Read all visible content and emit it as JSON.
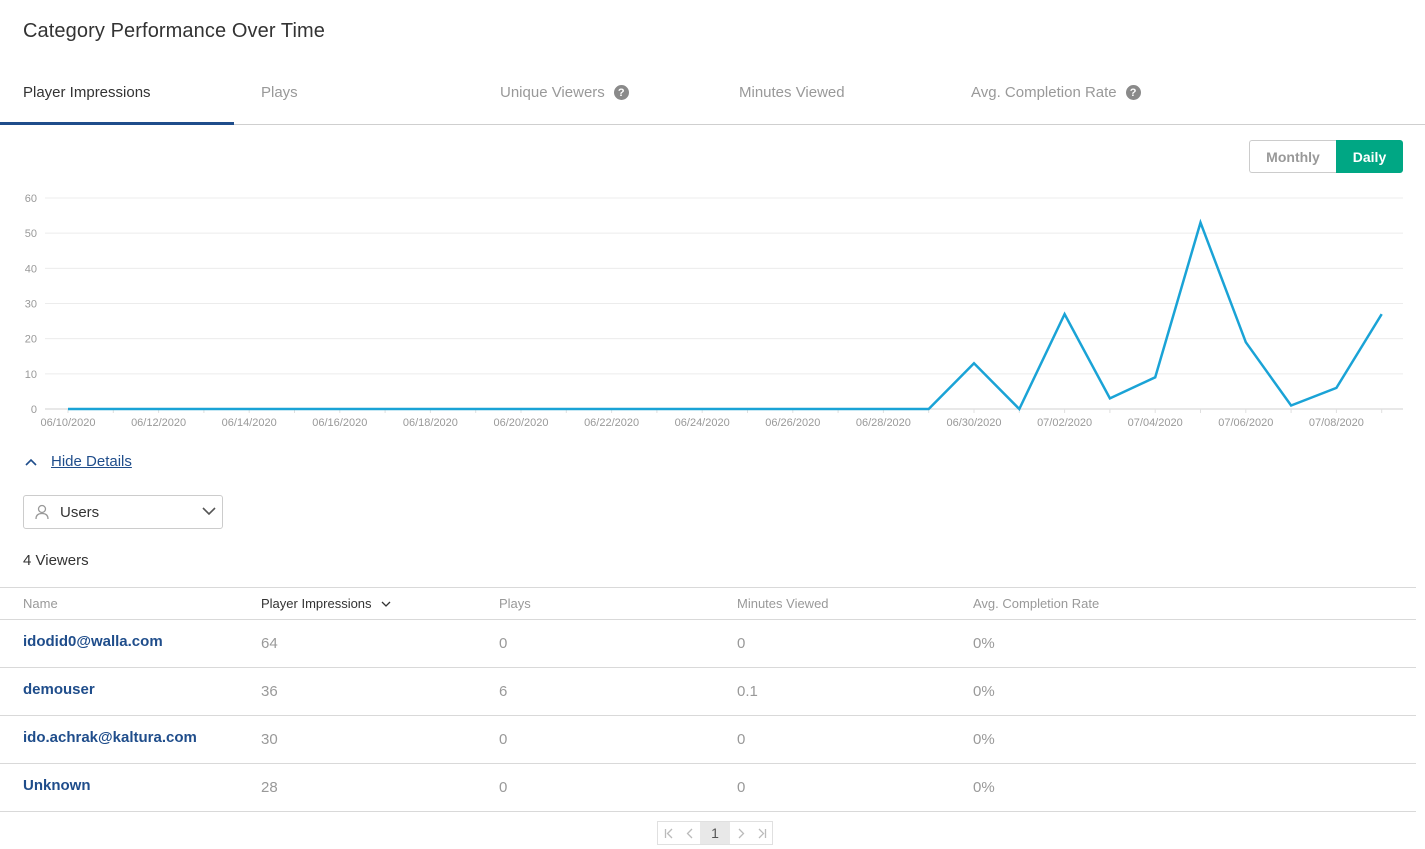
{
  "title": "Category Performance Over Time",
  "tabs": [
    {
      "label": "Player Impressions",
      "active": true,
      "help": false
    },
    {
      "label": "Plays",
      "active": false,
      "help": false
    },
    {
      "label": "Unique Viewers",
      "active": false,
      "help": true
    },
    {
      "label": "Minutes Viewed",
      "active": false,
      "help": false
    },
    {
      "label": "Avg. Completion Rate",
      "active": false,
      "help": true
    }
  ],
  "help_glyph": "?",
  "toggle": {
    "monthly": "Monthly",
    "daily": "Daily",
    "selected": "Daily"
  },
  "colors": {
    "accent_green": "#00a784",
    "link_blue": "#1f4d8b",
    "series_line": "#1aa3d6"
  },
  "chart_data": {
    "type": "line",
    "x": [
      "06/10/2020",
      "06/11/2020",
      "06/12/2020",
      "06/13/2020",
      "06/14/2020",
      "06/15/2020",
      "06/16/2020",
      "06/17/2020",
      "06/18/2020",
      "06/19/2020",
      "06/20/2020",
      "06/21/2020",
      "06/22/2020",
      "06/23/2020",
      "06/24/2020",
      "06/25/2020",
      "06/26/2020",
      "06/27/2020",
      "06/28/2020",
      "06/29/2020",
      "06/30/2020",
      "07/01/2020",
      "07/02/2020",
      "07/03/2020",
      "07/04/2020",
      "07/05/2020",
      "07/06/2020",
      "07/07/2020",
      "07/08/2020",
      "07/09/2020"
    ],
    "x_tick_labels": [
      "06/10/2020",
      "06/12/2020",
      "06/14/2020",
      "06/16/2020",
      "06/18/2020",
      "06/20/2020",
      "06/22/2020",
      "06/24/2020",
      "06/26/2020",
      "06/28/2020",
      "06/30/2020",
      "07/02/2020",
      "07/04/2020",
      "07/06/2020",
      "07/08/2020"
    ],
    "series": [
      {
        "values": [
          0,
          0,
          0,
          0,
          0,
          0,
          0,
          0,
          0,
          0,
          0,
          0,
          0,
          0,
          0,
          0,
          0,
          0,
          0,
          0,
          13,
          0,
          27,
          3,
          9,
          53,
          19,
          1,
          6,
          27
        ]
      }
    ],
    "ylim": [
      0,
      60
    ],
    "y_ticks": [
      0,
      10,
      20,
      30,
      40,
      50,
      60
    ],
    "grid": true,
    "title": "",
    "xlabel": "",
    "ylabel": ""
  },
  "details": {
    "hide_label": "Hide Details"
  },
  "users_select": {
    "label": "Users",
    "icon": "user-icon"
  },
  "viewer_count": "4 Viewers",
  "table": {
    "columns": [
      "Name",
      "Player Impressions",
      "Plays",
      "Minutes Viewed",
      "Avg. Completion Rate"
    ],
    "sorted_column": "Player Impressions",
    "rows": [
      {
        "name": "idodid0@walla.com",
        "impressions": "64",
        "plays": "0",
        "minutes": "0",
        "completion": "0%"
      },
      {
        "name": "demouser",
        "impressions": "36",
        "plays": "6",
        "minutes": "0.1",
        "completion": "0%"
      },
      {
        "name": "ido.achrak@kaltura.com",
        "impressions": "30",
        "plays": "0",
        "minutes": "0",
        "completion": "0%"
      },
      {
        "name": "Unknown",
        "impressions": "28",
        "plays": "0",
        "minutes": "0",
        "completion": "0%"
      }
    ]
  },
  "pagination": {
    "current_page": "1"
  }
}
